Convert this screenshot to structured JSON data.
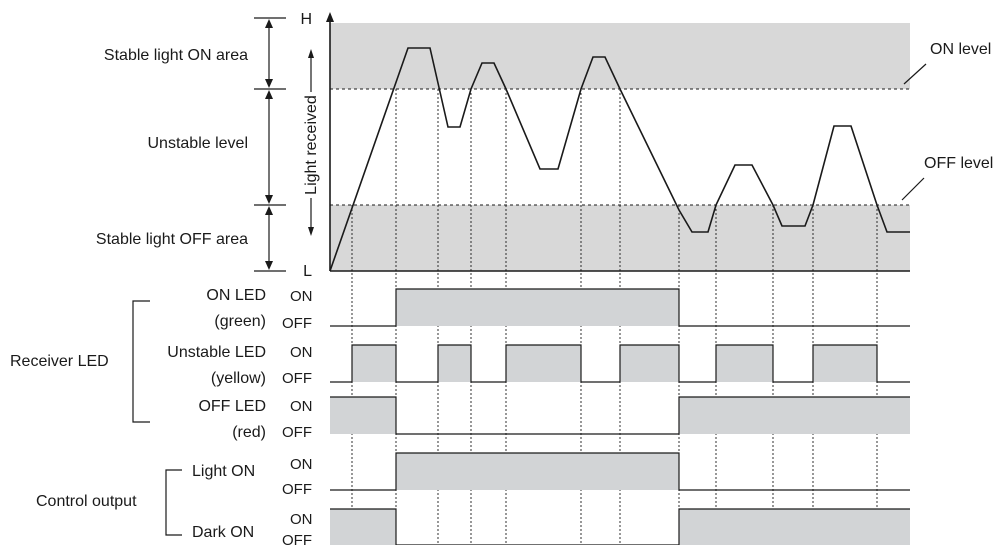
{
  "colors": {
    "band": "#d8d8d8",
    "pulse": "#d2d4d6",
    "ink": "#1a1a1a"
  },
  "axis": {
    "high_label": "H",
    "low_label": "L",
    "y_title": "Light received"
  },
  "regions": {
    "on_area": "Stable light ON area",
    "unstable": "Unstable level",
    "off_area": "Stable light OFF area"
  },
  "levels": {
    "on_level": "ON level",
    "off_level": "OFF level"
  },
  "groups": {
    "receiver_led": "Receiver LED",
    "control_output": "Control output"
  },
  "on_text": "ON",
  "off_text": "OFF",
  "signals": [
    {
      "name": "on-led",
      "label1": "ON LED",
      "label2": "(green)"
    },
    {
      "name": "unstable-led",
      "label1": "Unstable LED",
      "label2": "(yellow)"
    },
    {
      "name": "off-led",
      "label1": "OFF LED",
      "label2": "(red)"
    },
    {
      "name": "light-on",
      "label1": "Light ON",
      "label2": ""
    },
    {
      "name": "dark-on",
      "label1": "Dark ON",
      "label2": ""
    }
  ]
}
